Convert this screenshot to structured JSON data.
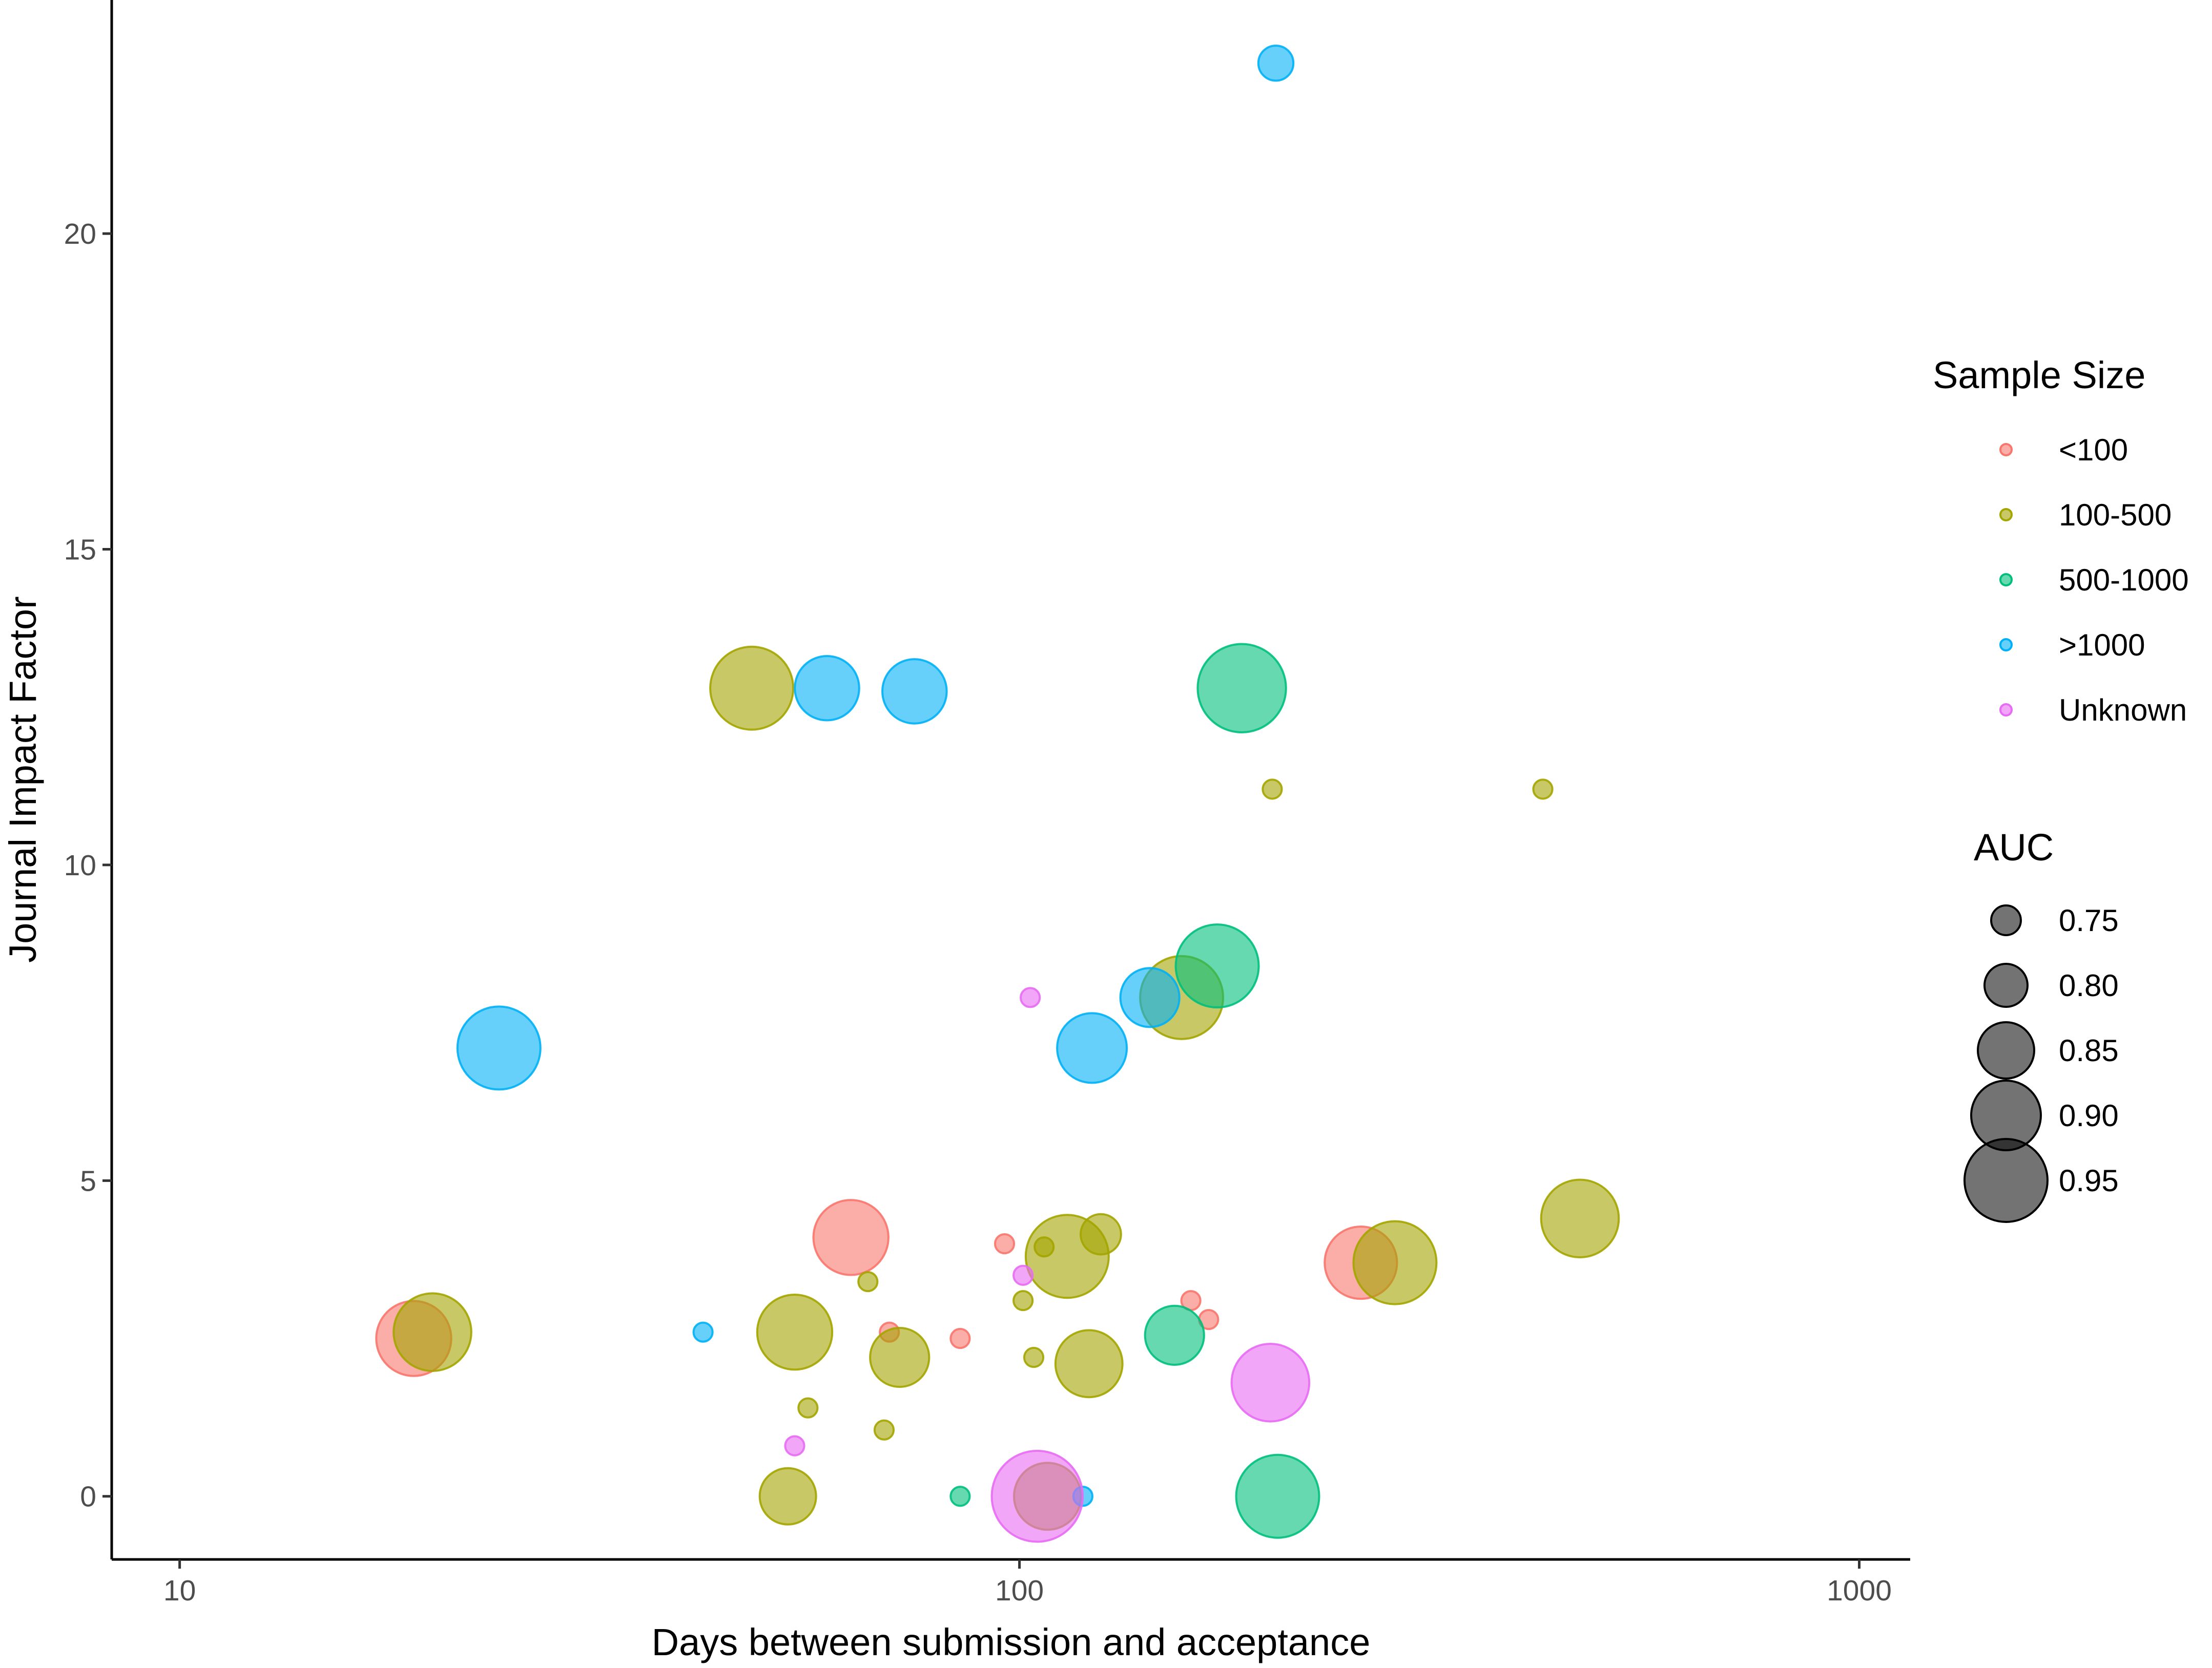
{
  "chart_data": {
    "type": "scatter",
    "xlabel": "Days between submission and acceptance",
    "ylabel": "Journal Impact Factor",
    "x_scale": "log",
    "xlim": [
      8.3,
      1150
    ],
    "ylim": [
      -1.0,
      23.7
    ],
    "x_ticks": [
      10,
      100,
      1000
    ],
    "x_tick_labels": [
      "10",
      "100",
      "1000"
    ],
    "y_ticks": [
      0,
      5,
      10,
      15,
      20
    ],
    "y_tick_labels": [
      "0",
      "5",
      "10",
      "15",
      "20"
    ],
    "grid": false,
    "legend_position": "right",
    "color_legend": {
      "title": "Sample Size",
      "items": [
        {
          "label": "<100",
          "color": "#F8766D"
        },
        {
          "label": "100-500",
          "color": "#A3A500"
        },
        {
          "label": "500-1000",
          "color": "#00BF7D"
        },
        {
          "label": ">1000",
          "color": "#00B0F6"
        },
        {
          "label": "Unknown",
          "color": "#E76BF3"
        }
      ]
    },
    "size_legend": {
      "title": "AUC",
      "items": [
        {
          "label": "0.75",
          "value": 0.75
        },
        {
          "label": "0.80",
          "value": 0.8
        },
        {
          "label": "0.85",
          "value": 0.85
        },
        {
          "label": "0.90",
          "value": 0.9
        },
        {
          "label": "0.95",
          "value": 0.95
        }
      ]
    },
    "series": [
      {
        "name": "<100",
        "color": "#F8766D",
        "points": [
          {
            "x": 19,
            "y": 2.5,
            "auc": 0.92
          },
          {
            "x": 63,
            "y": 4.1,
            "auc": 0.92
          },
          {
            "x": 96,
            "y": 4.0,
            "auc": 0.71
          },
          {
            "x": 70,
            "y": 2.6,
            "auc": 0.71
          },
          {
            "x": 85,
            "y": 2.5,
            "auc": 0.71
          },
          {
            "x": 160,
            "y": 3.1,
            "auc": 0.71
          },
          {
            "x": 168,
            "y": 2.8,
            "auc": 0.71
          },
          {
            "x": 255,
            "y": 3.7,
            "auc": 0.91
          }
        ]
      },
      {
        "name": "100-500",
        "color": "#A3A500",
        "points": [
          {
            "x": 20,
            "y": 2.6,
            "auc": 0.93
          },
          {
            "x": 48,
            "y": 12.8,
            "auc": 0.95
          },
          {
            "x": 54,
            "y": 2.6,
            "auc": 0.92
          },
          {
            "x": 53,
            "y": 0.0,
            "auc": 0.85
          },
          {
            "x": 56,
            "y": 1.4,
            "auc": 0.71
          },
          {
            "x": 66,
            "y": 3.4,
            "auc": 0.71
          },
          {
            "x": 69,
            "y": 1.05,
            "auc": 0.71
          },
          {
            "x": 72,
            "y": 2.2,
            "auc": 0.86
          },
          {
            "x": 101,
            "y": 3.1,
            "auc": 0.71
          },
          {
            "x": 104,
            "y": 2.2,
            "auc": 0.71
          },
          {
            "x": 107,
            "y": 3.95,
            "auc": 0.71
          },
          {
            "x": 108,
            "y": 0.0,
            "auc": 0.89
          },
          {
            "x": 114,
            "y": 3.8,
            "auc": 0.95
          },
          {
            "x": 121,
            "y": 2.1,
            "auc": 0.89
          },
          {
            "x": 125,
            "y": 4.15,
            "auc": 0.79
          },
          {
            "x": 156,
            "y": 7.9,
            "auc": 0.95
          },
          {
            "x": 200,
            "y": 11.2,
            "auc": 0.71
          },
          {
            "x": 280,
            "y": 3.7,
            "auc": 0.95
          },
          {
            "x": 420,
            "y": 11.2,
            "auc": 0.71
          },
          {
            "x": 465,
            "y": 4.4,
            "auc": 0.93
          }
        ]
      },
      {
        "name": "500-1000",
        "color": "#00BF7D",
        "points": [
          {
            "x": 85,
            "y": 0.0,
            "auc": 0.71
          },
          {
            "x": 153,
            "y": 2.55,
            "auc": 0.86
          },
          {
            "x": 172,
            "y": 8.4,
            "auc": 0.95
          },
          {
            "x": 184,
            "y": 12.8,
            "auc": 0.97
          },
          {
            "x": 203,
            "y": 0.0,
            "auc": 0.95
          }
        ]
      },
      {
        "name": ">1000",
        "color": "#00B0F6",
        "points": [
          {
            "x": 24,
            "y": 7.1,
            "auc": 0.95
          },
          {
            "x": 42,
            "y": 2.6,
            "auc": 0.71
          },
          {
            "x": 59,
            "y": 12.8,
            "auc": 0.88
          },
          {
            "x": 75,
            "y": 12.75,
            "auc": 0.88
          },
          {
            "x": 119,
            "y": 0.0,
            "auc": 0.71
          },
          {
            "x": 122,
            "y": 7.1,
            "auc": 0.9
          },
          {
            "x": 143,
            "y": 7.9,
            "auc": 0.86
          },
          {
            "x": 202,
            "y": 22.7,
            "auc": 0.77
          }
        ]
      },
      {
        "name": "Unknown",
        "color": "#E76BF3",
        "points": [
          {
            "x": 54,
            "y": 0.8,
            "auc": 0.71
          },
          {
            "x": 101,
            "y": 3.5,
            "auc": 0.71
          },
          {
            "x": 103,
            "y": 7.9,
            "auc": 0.71
          },
          {
            "x": 105,
            "y": 0.0,
            "auc": 0.98
          },
          {
            "x": 199,
            "y": 1.8,
            "auc": 0.93
          }
        ]
      }
    ]
  }
}
